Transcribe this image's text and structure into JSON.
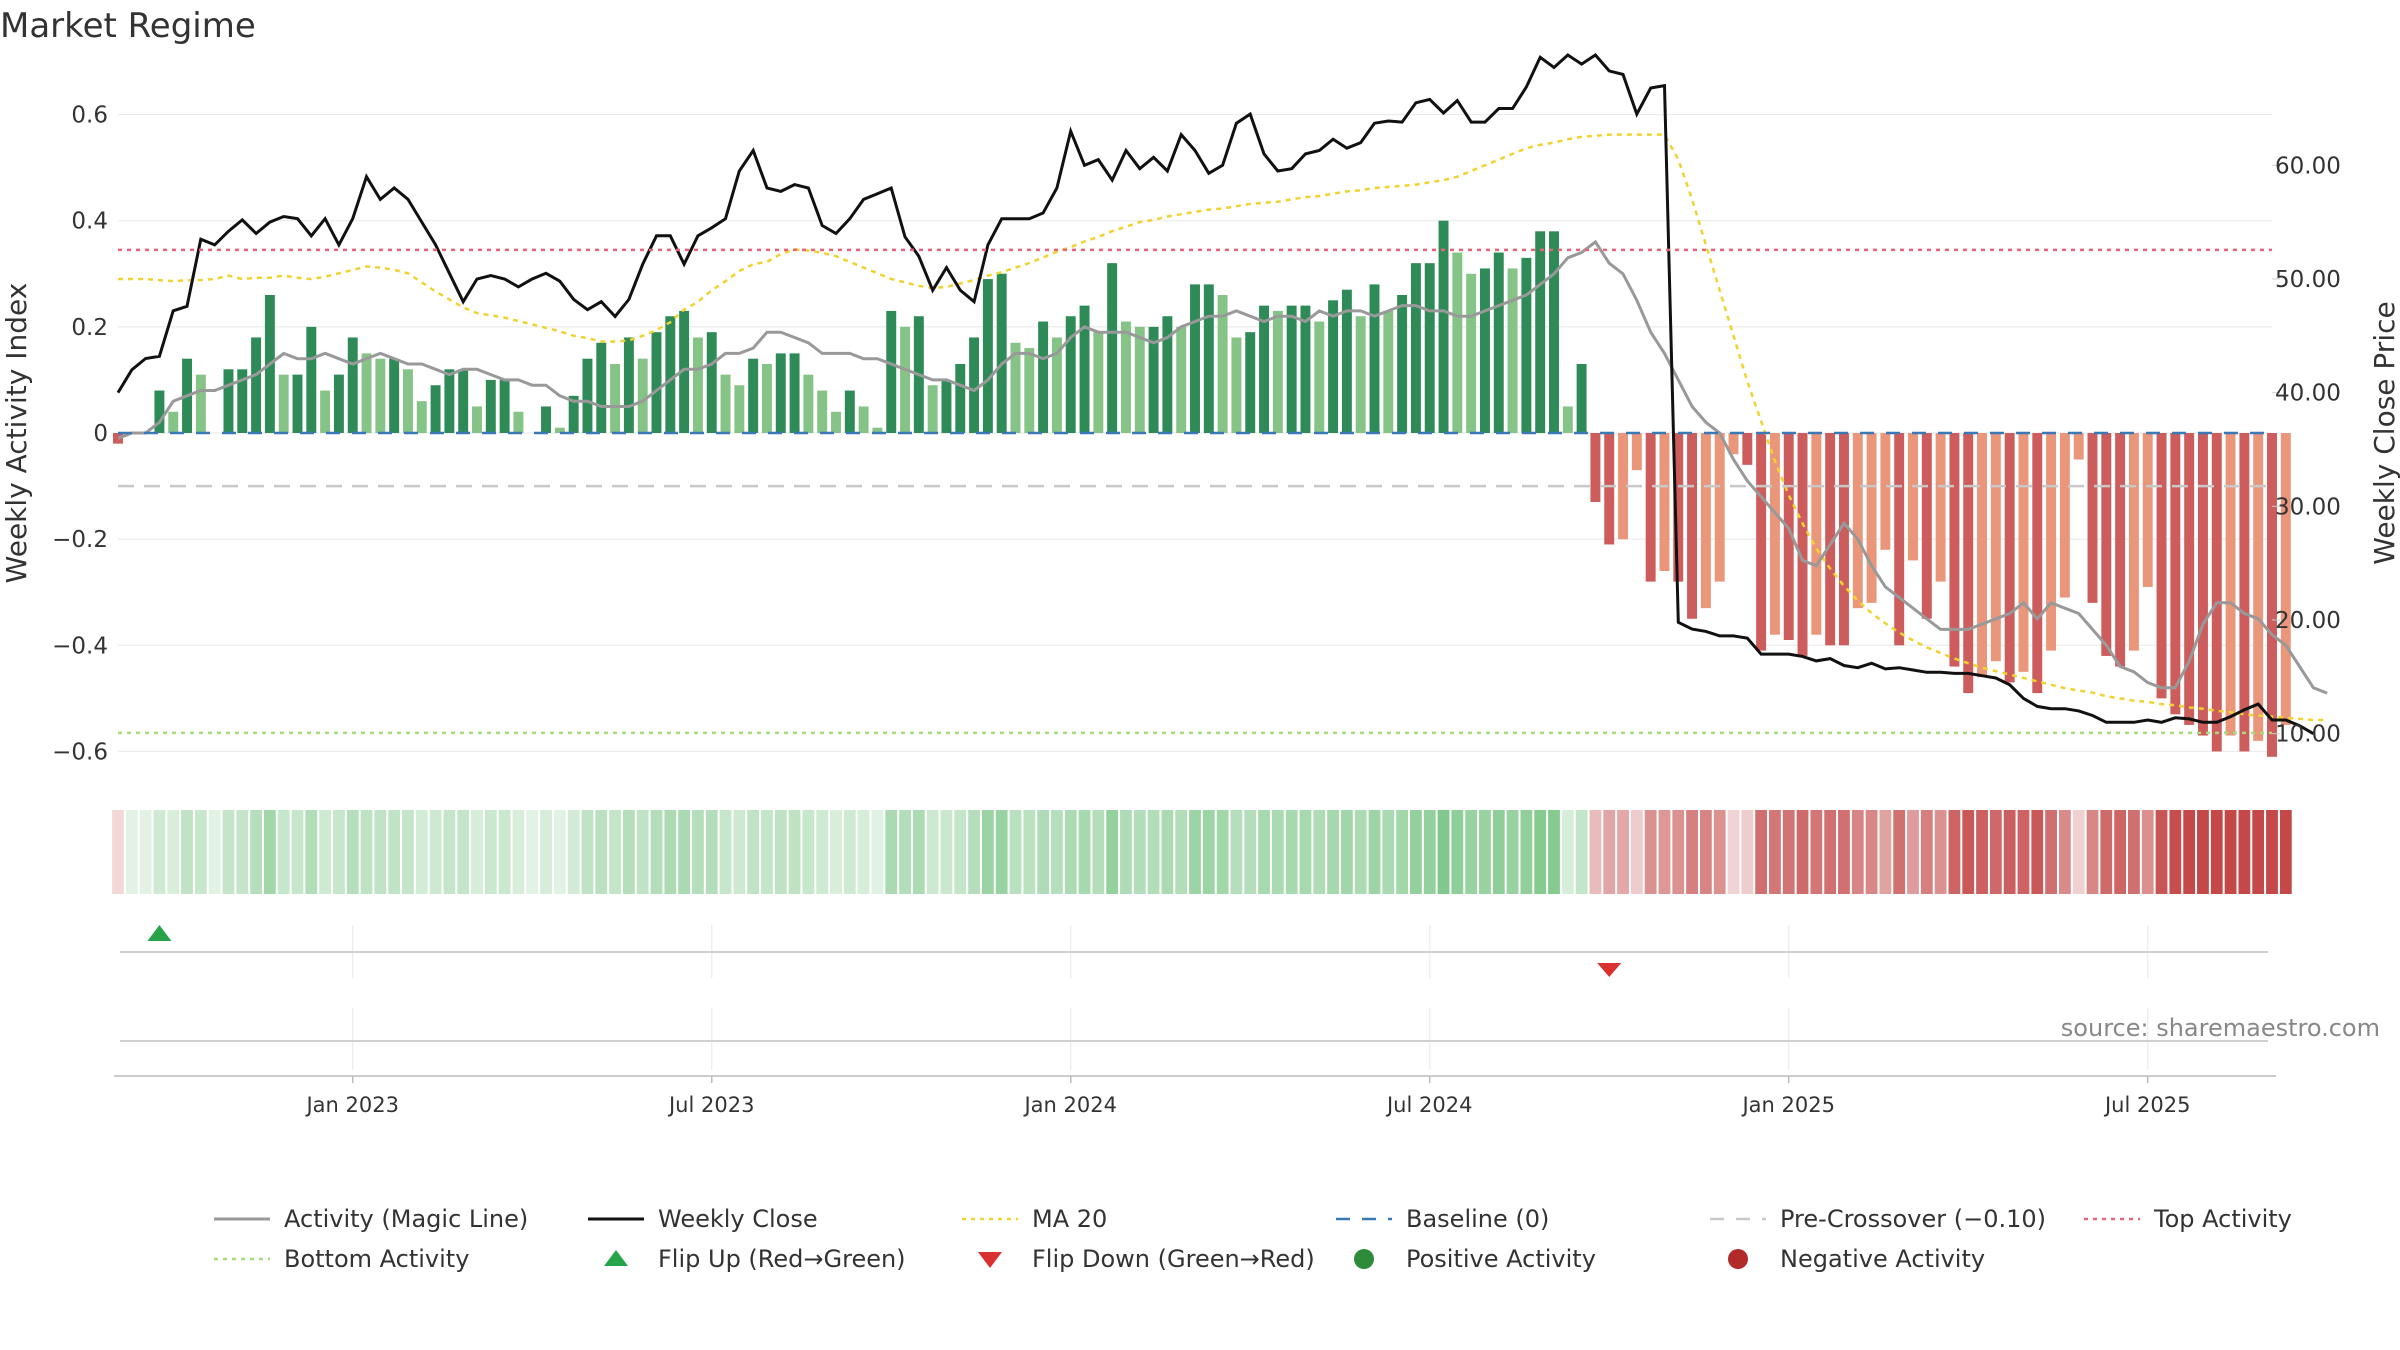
{
  "title": "Market Regime",
  "source": "source: sharemaestro.com",
  "colors": {
    "magic_line": "#999999",
    "weekly_close": "#111111",
    "ma20": "#f2d22e",
    "baseline": "#3a79b5",
    "pre_crossover": "#c8c8c8",
    "top_activity": "#e8637a",
    "bottom_activity": "#a8dc7a",
    "flip_up": "#27a34a",
    "flip_down": "#d93030",
    "positive": "#2e8b3a",
    "negative": "#b22a2a",
    "bar_pos_dark": "#2e8b57",
    "bar_pos_light": "#86c386",
    "bar_neg_dark": "#cd5c5c",
    "bar_neg_light": "#e9967a"
  },
  "chart_data": {
    "type": "bar",
    "y_left_label": "Weekly Activity Index",
    "y_right_label": "Weekly Close Price",
    "y_left_ticks": [
      "0.6",
      "0.4",
      "0.2",
      "0",
      "−0.2",
      "−0.4",
      "−0.6"
    ],
    "y_left_range": [
      -0.65,
      0.65
    ],
    "y_right_ticks": [
      "60.00",
      "50.00",
      "40.00",
      "30.00",
      "20.00",
      "10.00"
    ],
    "y_right_range": [
      6.1,
      66.8
    ],
    "x_ticks": [
      "Jan 2023",
      "Jul 2023",
      "Jan 2024",
      "Jul 2024",
      "Jan 2025",
      "Jul 2025"
    ],
    "x_start": "2022-09-05",
    "x_tick_weeks": [
      17,
      43,
      69,
      95,
      121,
      147
    ],
    "weeks": 157,
    "reference_lines": {
      "baseline": 0,
      "pre_crossover": -0.1,
      "top_activity": 0.345,
      "bottom_activity": -0.565
    },
    "series": [
      {
        "name": "Weekly Activity Index",
        "values": [
          -0.02,
          0.0,
          0.0,
          0.08,
          0.04,
          0.14,
          0.11,
          0.0,
          0.12,
          0.12,
          0.18,
          0.26,
          0.11,
          0.11,
          0.2,
          0.08,
          0.11,
          0.18,
          0.15,
          0.14,
          0.14,
          0.12,
          0.06,
          0.09,
          0.12,
          0.12,
          0.05,
          0.1,
          0.1,
          0.04,
          0.0,
          0.05,
          0.01,
          0.07,
          0.14,
          0.17,
          0.13,
          0.18,
          0.14,
          0.19,
          0.22,
          0.23,
          0.18,
          0.19,
          0.11,
          0.09,
          0.14,
          0.13,
          0.15,
          0.15,
          0.11,
          0.08,
          0.04,
          0.08,
          0.05,
          0.01,
          0.23,
          0.2,
          0.22,
          0.09,
          0.1,
          0.13,
          0.18,
          0.29,
          0.3,
          0.17,
          0.16,
          0.21,
          0.18,
          0.22,
          0.24,
          0.19,
          0.32,
          0.21,
          0.2,
          0.2,
          0.22,
          0.2,
          0.28,
          0.28,
          0.26,
          0.18,
          0.19,
          0.24,
          0.23,
          0.24,
          0.24,
          0.21,
          0.25,
          0.27,
          0.22,
          0.28,
          0.23,
          0.26,
          0.32,
          0.32,
          0.4,
          0.34,
          0.3,
          0.31,
          0.34,
          0.31,
          0.33,
          0.38,
          0.38,
          0.05,
          0.13,
          -0.13,
          -0.21,
          -0.2,
          -0.07,
          -0.28,
          -0.26,
          -0.28,
          -0.35,
          -0.33,
          -0.28,
          -0.04,
          -0.06,
          -0.41,
          -0.38,
          -0.39,
          -0.42,
          -0.38,
          -0.4,
          -0.4,
          -0.33,
          -0.32,
          -0.22,
          -0.4,
          -0.24,
          -0.35,
          -0.28,
          -0.44,
          -0.49,
          -0.46,
          -0.43,
          -0.47,
          -0.45,
          -0.49,
          -0.41,
          -0.31,
          -0.05,
          -0.32,
          -0.42,
          -0.44,
          -0.41,
          -0.29,
          -0.5,
          -0.53,
          -0.55,
          -0.57,
          -0.6,
          -0.57,
          -0.6,
          -0.58,
          -0.61,
          -0.55
        ]
      },
      {
        "name": "Activity (Magic Line)",
        "values": [
          -0.01,
          0.0,
          0.0,
          0.02,
          0.06,
          0.07,
          0.08,
          0.08,
          0.09,
          0.1,
          0.11,
          0.13,
          0.15,
          0.14,
          0.14,
          0.15,
          0.14,
          0.13,
          0.14,
          0.15,
          0.14,
          0.13,
          0.13,
          0.12,
          0.11,
          0.12,
          0.12,
          0.11,
          0.1,
          0.1,
          0.09,
          0.09,
          0.07,
          0.06,
          0.06,
          0.05,
          0.05,
          0.05,
          0.06,
          0.08,
          0.1,
          0.12,
          0.12,
          0.13,
          0.15,
          0.15,
          0.16,
          0.19,
          0.19,
          0.18,
          0.17,
          0.15,
          0.15,
          0.15,
          0.14,
          0.14,
          0.13,
          0.12,
          0.11,
          0.1,
          0.1,
          0.09,
          0.08,
          0.1,
          0.13,
          0.15,
          0.15,
          0.14,
          0.15,
          0.18,
          0.2,
          0.19,
          0.19,
          0.19,
          0.18,
          0.17,
          0.18,
          0.2,
          0.21,
          0.22,
          0.22,
          0.23,
          0.22,
          0.21,
          0.22,
          0.22,
          0.21,
          0.23,
          0.22,
          0.23,
          0.23,
          0.22,
          0.23,
          0.24,
          0.24,
          0.23,
          0.23,
          0.22,
          0.22,
          0.23,
          0.24,
          0.25,
          0.26,
          0.28,
          0.3,
          0.33,
          0.34,
          0.36,
          0.32,
          0.3,
          0.25,
          0.19,
          0.15,
          0.1,
          0.05,
          0.02,
          0.0,
          -0.05,
          -0.09,
          -0.12,
          -0.15,
          -0.18,
          -0.24,
          -0.25,
          -0.21,
          -0.17,
          -0.2,
          -0.25,
          -0.29,
          -0.31,
          -0.33,
          -0.35,
          -0.37,
          -0.37,
          -0.37,
          -0.36,
          -0.35,
          -0.34,
          -0.32,
          -0.35,
          -0.32,
          -0.33,
          -0.34,
          -0.37,
          -0.4,
          -0.44,
          -0.45,
          -0.47,
          -0.48,
          -0.48,
          -0.43,
          -0.36,
          -0.32,
          -0.32,
          -0.34,
          -0.35,
          -0.38,
          -0.4,
          -0.44,
          -0.48,
          -0.49
        ]
      },
      {
        "name": "Weekly Close",
        "values": [
          40.0,
          42.0,
          43.0,
          43.2,
          47.2,
          47.6,
          53.5,
          53.0,
          54.2,
          55.2,
          54.0,
          55.0,
          55.5,
          55.3,
          53.8,
          55.3,
          53.0,
          55.3,
          59.0,
          57.0,
          58.0,
          57.0,
          55.0,
          53.0,
          50.5,
          48.0,
          50.0,
          50.3,
          50.0,
          49.3,
          50.0,
          50.5,
          49.8,
          48.2,
          47.3,
          48.0,
          46.7,
          48.2,
          51.3,
          53.8,
          53.8,
          51.3,
          53.8,
          54.5,
          55.3,
          59.5,
          61.3,
          58.0,
          57.7,
          58.3,
          58.0,
          54.7,
          54.0,
          55.3,
          57.0,
          57.5,
          58.0,
          53.7,
          52.0,
          49.0,
          51.0,
          49.0,
          48.0,
          53.0,
          55.3,
          55.3,
          55.3,
          55.8,
          58.0,
          63.0,
          60.0,
          60.5,
          58.7,
          61.3,
          59.7,
          60.7,
          59.5,
          62.7,
          61.3,
          59.3,
          60.0,
          63.7,
          64.5,
          61.0,
          59.5,
          59.7,
          61.0,
          61.3,
          62.3,
          61.5,
          62.0,
          63.7,
          63.9,
          63.8,
          65.5,
          65.8,
          64.6,
          65.7,
          63.8,
          63.8,
          65.0,
          65.0,
          66.9,
          69.5,
          68.6,
          69.7,
          68.9,
          69.7,
          68.3,
          68.0,
          64.5,
          66.8,
          67.0,
          19.8,
          19.2,
          19.0,
          18.6,
          18.6,
          18.4,
          17.0,
          17.0,
          17.0,
          16.8,
          16.4,
          16.6,
          16.0,
          15.8,
          16.2,
          15.7,
          15.8,
          15.6,
          15.4,
          15.4,
          15.3,
          15.3,
          15.1,
          14.9,
          14.3,
          13.1,
          12.4,
          12.2,
          12.2,
          12.0,
          11.6,
          11.0,
          11.0,
          11.0,
          11.2,
          11.0,
          11.4,
          11.3,
          11.0,
          11.0,
          11.5,
          12.1,
          12.6,
          11.2,
          11.2,
          10.7,
          10.0
        ]
      },
      {
        "name": "MA 20",
        "values": [
          50.0,
          50.0,
          50.0,
          49.9,
          49.8,
          49.9,
          49.9,
          50.0,
          50.3,
          50.0,
          50.1,
          50.1,
          50.3,
          50.1,
          50.0,
          50.2,
          50.5,
          50.8,
          51.1,
          51.0,
          50.8,
          50.5,
          49.7,
          48.9,
          48.2,
          47.5,
          47.0,
          46.8,
          46.6,
          46.3,
          46.0,
          45.7,
          45.4,
          45.0,
          44.8,
          44.5,
          44.5,
          44.6,
          45.0,
          45.5,
          46.2,
          47.3,
          48.0,
          49.0,
          49.8,
          50.7,
          51.3,
          51.5,
          52.2,
          52.6,
          52.5,
          52.3,
          52.0,
          51.5,
          51.0,
          50.5,
          50.0,
          49.7,
          49.4,
          49.2,
          49.3,
          49.6,
          49.9,
          50.3,
          50.6,
          51.0,
          51.4,
          51.9,
          52.4,
          52.8,
          53.3,
          53.7,
          54.2,
          54.6,
          55.0,
          55.2,
          55.5,
          55.7,
          55.9,
          56.1,
          56.2,
          56.4,
          56.6,
          56.7,
          56.8,
          57.0,
          57.2,
          57.3,
          57.5,
          57.7,
          57.8,
          58.0,
          58.1,
          58.2,
          58.3,
          58.5,
          58.7,
          59.0,
          59.5,
          60.0,
          60.5,
          61.0,
          61.5,
          61.8,
          62.0,
          62.3,
          62.5,
          62.6,
          62.7,
          62.7,
          62.7,
          62.7,
          62.7,
          60.5,
          57.0,
          53.0,
          49.0,
          45.0,
          41.0,
          37.5,
          34.0,
          31.0,
          28.5,
          26.3,
          24.5,
          23.0,
          21.7,
          20.6,
          19.7,
          18.9,
          18.2,
          17.6,
          17.1,
          16.6,
          16.2,
          15.8,
          15.5,
          15.2,
          14.9,
          14.6,
          14.3,
          14.0,
          13.8,
          13.6,
          13.3,
          13.1,
          12.9,
          12.8,
          12.6,
          12.5,
          12.3,
          12.2,
          12.0,
          11.9,
          11.7,
          11.6,
          11.5,
          11.4,
          11.3,
          11.2,
          11.2
        ]
      }
    ],
    "flip_up_week": 3,
    "flip_down_week": 108
  },
  "legend": [
    {
      "label": "Activity (Magic Line)",
      "kind": "line",
      "color_key": "magic_line"
    },
    {
      "label": "Weekly Close",
      "kind": "line",
      "color_key": "weekly_close"
    },
    {
      "label": "MA 20",
      "kind": "dotted",
      "color_key": "ma20"
    },
    {
      "label": "Baseline (0)",
      "kind": "dashed",
      "color_key": "baseline"
    },
    {
      "label": "Pre-Crossover (−0.10)",
      "kind": "dashed",
      "color_key": "pre_crossover"
    },
    {
      "label": "Top Activity",
      "kind": "dotted",
      "color_key": "top_activity"
    },
    {
      "label": "Bottom Activity",
      "kind": "dotted",
      "color_key": "bottom_activity"
    },
    {
      "label": "Flip Up (Red→Green)",
      "kind": "triangle-up",
      "color_key": "flip_up"
    },
    {
      "label": "Flip Down (Green→Red)",
      "kind": "triangle-down",
      "color_key": "flip_down"
    },
    {
      "label": "Positive Activity",
      "kind": "circle",
      "color_key": "positive"
    },
    {
      "label": "Negative Activity",
      "kind": "circle",
      "color_key": "negative"
    }
  ]
}
